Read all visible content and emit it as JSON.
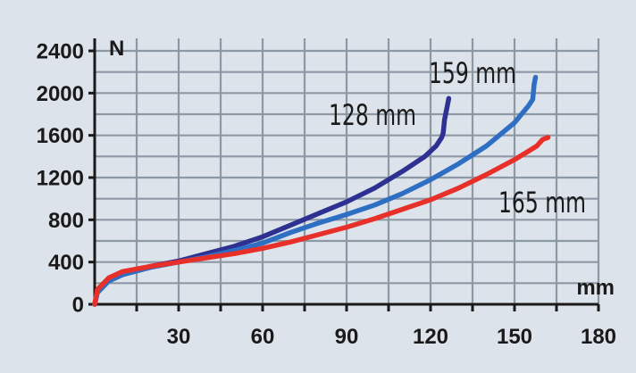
{
  "chart_data": {
    "type": "line",
    "xunit": "mm",
    "yunit": "N",
    "xlim": [
      0,
      180
    ],
    "ylim": [
      0,
      2400
    ],
    "x_ticks": [
      30,
      60,
      90,
      120,
      150,
      180
    ],
    "y_ticks": [
      0,
      400,
      800,
      1200,
      1600,
      2000,
      2400
    ],
    "grid": true,
    "colors": {
      "background": "#dde3ea",
      "grid": "#8d98a5",
      "axis": "#1a1a1a"
    },
    "series": [
      {
        "name": "128 mm",
        "color": "#2e3192",
        "points": [
          [
            0,
            0
          ],
          [
            1,
            120
          ],
          [
            5,
            230
          ],
          [
            10,
            290
          ],
          [
            20,
            360
          ],
          [
            30,
            410
          ],
          [
            40,
            480
          ],
          [
            50,
            550
          ],
          [
            60,
            640
          ],
          [
            70,
            750
          ],
          [
            80,
            860
          ],
          [
            90,
            970
          ],
          [
            100,
            1100
          ],
          [
            110,
            1260
          ],
          [
            118,
            1400
          ],
          [
            122,
            1500
          ],
          [
            124,
            1580
          ],
          [
            124.5,
            1620
          ],
          [
            125,
            1750
          ],
          [
            126,
            1880
          ],
          [
            126.5,
            1950
          ]
        ]
      },
      {
        "name": "159 mm",
        "color": "#2e6fc4",
        "points": [
          [
            0,
            0
          ],
          [
            1,
            110
          ],
          [
            5,
            220
          ],
          [
            10,
            280
          ],
          [
            20,
            350
          ],
          [
            30,
            400
          ],
          [
            40,
            450
          ],
          [
            50,
            510
          ],
          [
            60,
            580
          ],
          [
            70,
            680
          ],
          [
            80,
            770
          ],
          [
            90,
            850
          ],
          [
            100,
            940
          ],
          [
            110,
            1050
          ],
          [
            120,
            1180
          ],
          [
            130,
            1330
          ],
          [
            140,
            1500
          ],
          [
            150,
            1720
          ],
          [
            155,
            1880
          ],
          [
            156.5,
            1940
          ],
          [
            157,
            2080
          ],
          [
            157.5,
            2150
          ]
        ]
      },
      {
        "name": "165 mm",
        "color": "#e8302a",
        "points": [
          [
            0,
            0
          ],
          [
            1,
            140
          ],
          [
            5,
            250
          ],
          [
            10,
            310
          ],
          [
            20,
            360
          ],
          [
            30,
            400
          ],
          [
            40,
            440
          ],
          [
            50,
            480
          ],
          [
            60,
            530
          ],
          [
            70,
            590
          ],
          [
            80,
            660
          ],
          [
            90,
            730
          ],
          [
            100,
            810
          ],
          [
            110,
            900
          ],
          [
            120,
            990
          ],
          [
            130,
            1100
          ],
          [
            140,
            1230
          ],
          [
            150,
            1370
          ],
          [
            155,
            1450
          ],
          [
            158,
            1500
          ],
          [
            160,
            1560
          ],
          [
            162,
            1580
          ]
        ]
      }
    ]
  }
}
